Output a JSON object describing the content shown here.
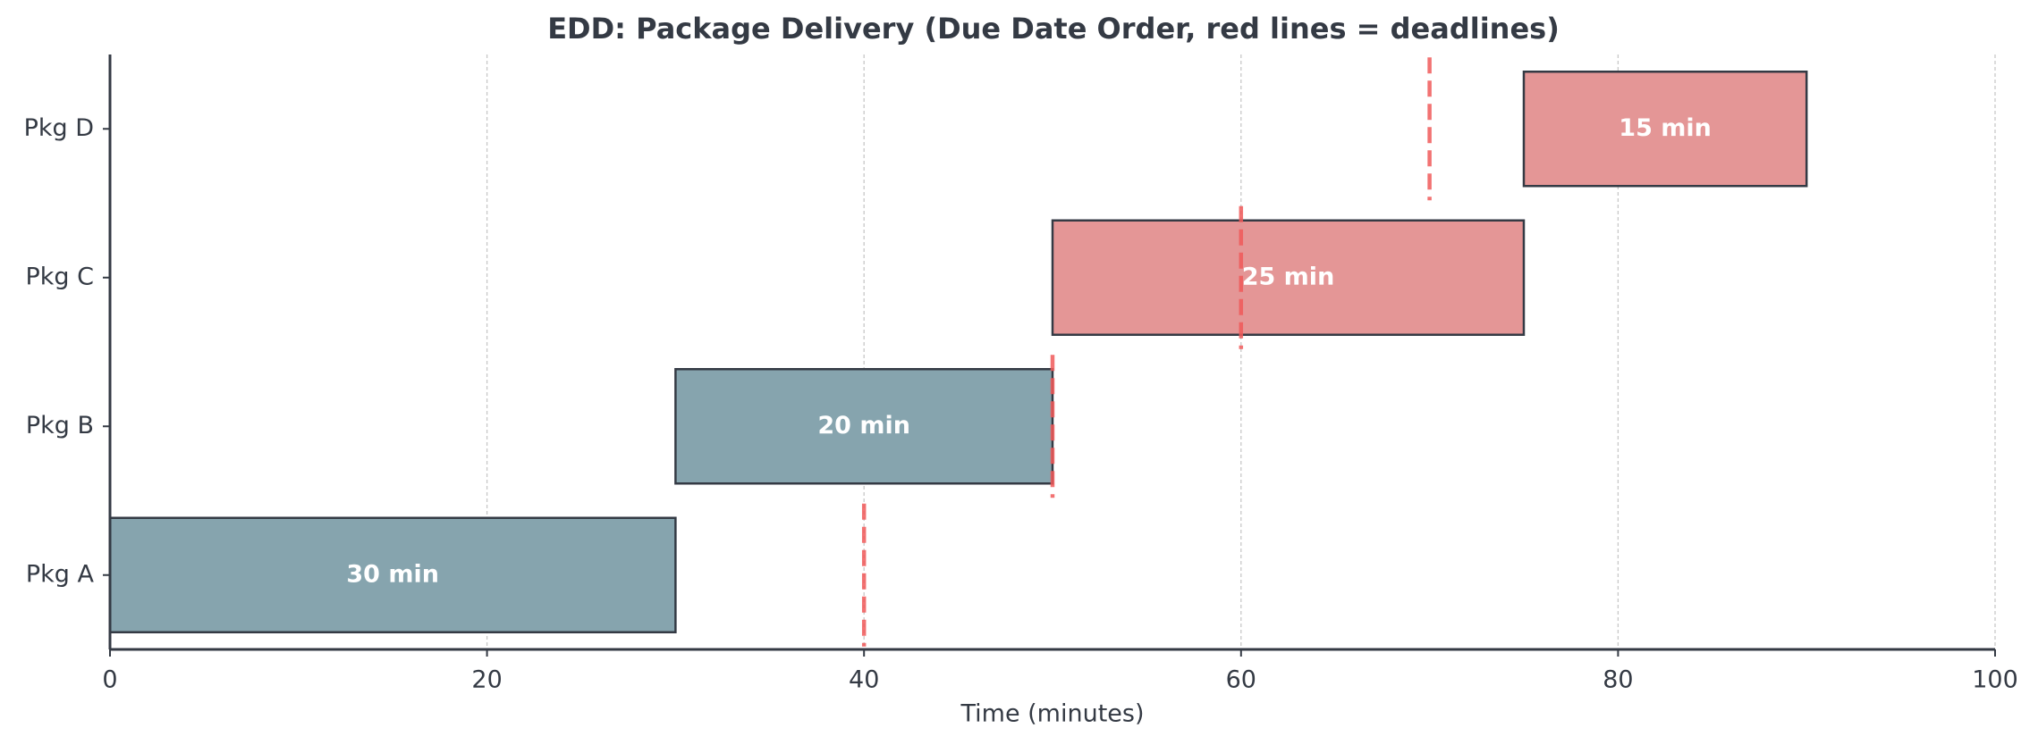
{
  "chart_data": {
    "type": "gantt",
    "title": "EDD: Package Delivery (Due Date Order, red lines = deadlines)",
    "xlabel": "Time (minutes)",
    "categories": [
      "Pkg A",
      "Pkg B",
      "Pkg C",
      "Pkg D"
    ],
    "starts": [
      0,
      30,
      50,
      75
    ],
    "values": [
      30,
      20,
      25,
      15
    ],
    "value_labels": [
      "30 min",
      "20 min",
      "25 min",
      "15 min"
    ],
    "deadlines": [
      40,
      50,
      60,
      70
    ],
    "colors": [
      "#86a4ae",
      "#86a4ae",
      "#e49696",
      "#e49696"
    ],
    "deadline_color": "#f05a5a",
    "xlim": [
      0,
      100
    ],
    "xticks": [
      0,
      20,
      40,
      60,
      80,
      100
    ],
    "grid": true
  }
}
